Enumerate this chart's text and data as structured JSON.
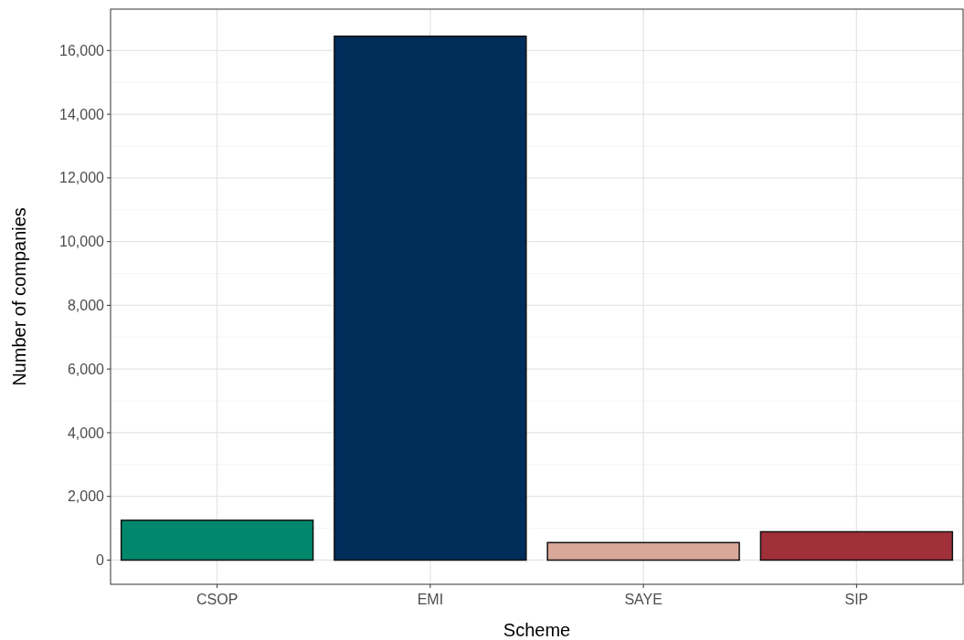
{
  "chart_data": {
    "type": "bar",
    "xlabel": "Scheme",
    "ylabel": "Number of companies",
    "categories": [
      "CSOP",
      "EMI",
      "SAYE",
      "SIP"
    ],
    "values": [
      1250,
      16450,
      550,
      890
    ],
    "colors": [
      "#00876c",
      "#002d5a",
      "#d9a898",
      "#a0303a"
    ],
    "ylim": [
      -760,
      17300
    ],
    "yticks": [
      {
        "value": 0,
        "label": "0"
      },
      {
        "value": 2000,
        "label": "2,000"
      },
      {
        "value": 4000,
        "label": "4,000"
      },
      {
        "value": 6000,
        "label": "6,000"
      },
      {
        "value": 8000,
        "label": "8,000"
      },
      {
        "value": 10000,
        "label": "10,000"
      },
      {
        "value": 12000,
        "label": "12,000"
      },
      {
        "value": 14000,
        "label": "14,000"
      },
      {
        "value": 16000,
        "label": "16,000"
      }
    ],
    "grid": true
  }
}
